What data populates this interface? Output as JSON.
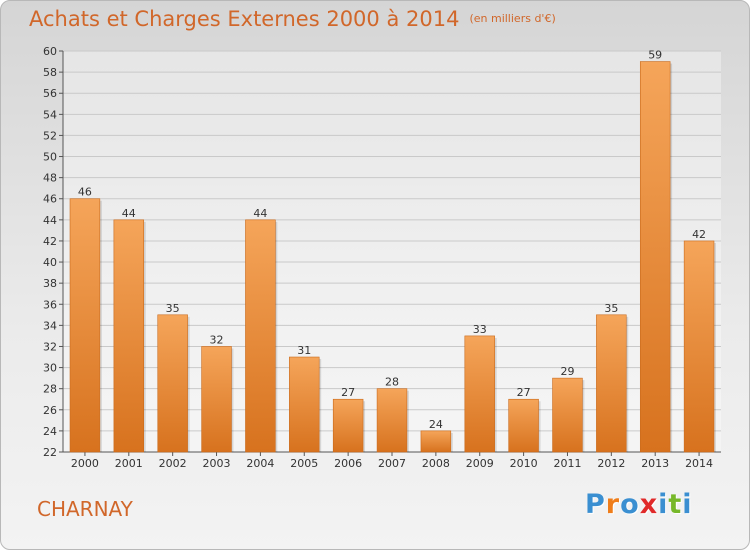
{
  "header": {
    "title": "Achats et Charges Externes 2000 à 2014",
    "unit": "(en milliers d'€)"
  },
  "footer": {
    "commune": "CHARNAY",
    "logo_letters": [
      "P",
      "r",
      "o",
      "x",
      "i",
      "t",
      "i"
    ],
    "logo_colors": [
      "#3a8fd1",
      "#ef7d1a",
      "#3a8fd1",
      "#e02a2a",
      "#3a8fd1",
      "#77b82a",
      "#3a8fd1"
    ]
  },
  "colors": {
    "bar_light": "#f5a55a",
    "bar_dark": "#d7721e",
    "title": "#d1672a",
    "axis": "#555555",
    "grid": "#c9c9c9"
  },
  "chart_data": {
    "type": "bar",
    "categories": [
      "2000",
      "2001",
      "2002",
      "2003",
      "2004",
      "2005",
      "2006",
      "2007",
      "2008",
      "2009",
      "2010",
      "2011",
      "2012",
      "2013",
      "2014"
    ],
    "values": [
      46,
      44,
      35,
      32,
      44,
      31,
      27,
      28,
      24,
      33,
      27,
      29,
      35,
      59,
      42
    ],
    "ylim": [
      22,
      60
    ],
    "yticks": [
      22,
      24,
      26,
      28,
      30,
      32,
      34,
      36,
      38,
      40,
      42,
      44,
      46,
      48,
      50,
      52,
      54,
      56,
      58,
      60
    ],
    "grid": true,
    "data_labels": true
  }
}
